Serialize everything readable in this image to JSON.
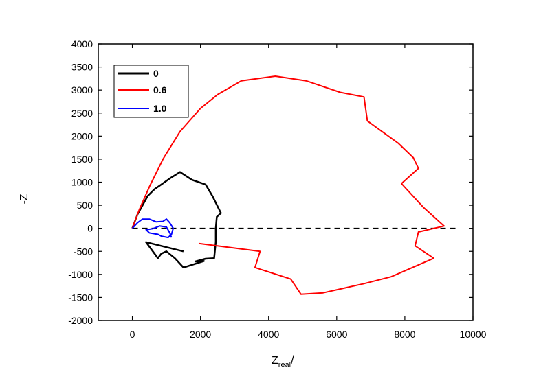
{
  "chart_data": {
    "type": "line",
    "title": "",
    "xlabel": "Z",
    "xlabel_subscript": "real",
    "xlabel_suffix": "/",
    "ylabel": "-Z",
    "xlim": [
      -1000,
      10000
    ],
    "ylim": [
      -2000,
      4000
    ],
    "x_ticks": [
      0,
      2000,
      4000,
      6000,
      8000,
      10000
    ],
    "y_ticks": [
      -2000,
      -1500,
      -1000,
      -500,
      0,
      500,
      1000,
      1500,
      2000,
      2500,
      3000,
      3500,
      4000
    ],
    "x_tick_labels": [
      "0",
      "2000",
      "4000",
      "6000",
      "8000",
      "10000"
    ],
    "y_tick_labels": [
      "-2000",
      "-1500",
      "-1000",
      "-500",
      "0",
      "500",
      "1000",
      "1500",
      "2000",
      "2500",
      "3000",
      "3500",
      "4000"
    ],
    "grid": false,
    "legend_position": "top-left",
    "reference_line": {
      "y": 0,
      "style": "dashed",
      "color": "#000000"
    },
    "series": [
      {
        "name": "0",
        "color": "#000000",
        "points": [
          [
            0,
            0
          ],
          [
            150,
            300
          ],
          [
            300,
            500
          ],
          [
            450,
            700
          ],
          [
            650,
            850
          ],
          [
            850,
            950
          ],
          [
            1100,
            1080
          ],
          [
            1400,
            1220
          ],
          [
            1750,
            1050
          ],
          [
            2150,
            950
          ],
          [
            2350,
            700
          ],
          [
            2600,
            330
          ],
          [
            2480,
            250
          ],
          [
            2450,
            0
          ],
          [
            2450,
            -300
          ],
          [
            2400,
            -650
          ],
          [
            2150,
            -660
          ],
          [
            1850,
            -720
          ],
          [
            2100,
            -710
          ],
          [
            1500,
            -850
          ],
          [
            1250,
            -650
          ],
          [
            1000,
            -500
          ],
          [
            850,
            -550
          ],
          [
            750,
            -650
          ],
          [
            400,
            -300
          ],
          [
            1500,
            -500
          ]
        ]
      },
      {
        "name": "0.6",
        "color": "#ff0000",
        "points": [
          [
            0,
            0
          ],
          [
            200,
            400
          ],
          [
            500,
            900
          ],
          [
            900,
            1500
          ],
          [
            1400,
            2100
          ],
          [
            2000,
            2600
          ],
          [
            2500,
            2900
          ],
          [
            3200,
            3200
          ],
          [
            4200,
            3300
          ],
          [
            5100,
            3200
          ],
          [
            6100,
            2950
          ],
          [
            6800,
            2850
          ],
          [
            6900,
            2330
          ],
          [
            7800,
            1850
          ],
          [
            8250,
            1530
          ],
          [
            8400,
            1300
          ],
          [
            7900,
            970
          ],
          [
            8550,
            450
          ],
          [
            9150,
            50
          ],
          [
            8400,
            -80
          ],
          [
            8300,
            -380
          ],
          [
            8850,
            -650
          ],
          [
            7600,
            -1050
          ],
          [
            6800,
            -1200
          ],
          [
            5600,
            -1400
          ],
          [
            4950,
            -1430
          ],
          [
            4650,
            -1100
          ],
          [
            3600,
            -850
          ],
          [
            3750,
            -500
          ],
          [
            1950,
            -330
          ]
        ]
      },
      {
        "name": "1.0",
        "color": "#0000ff",
        "points": [
          [
            0,
            0
          ],
          [
            150,
            120
          ],
          [
            300,
            200
          ],
          [
            500,
            200
          ],
          [
            700,
            140
          ],
          [
            900,
            150
          ],
          [
            1000,
            200
          ],
          [
            1100,
            120
          ],
          [
            1200,
            0
          ],
          [
            1150,
            -130
          ],
          [
            1050,
            -200
          ],
          [
            850,
            -170
          ],
          [
            750,
            -130
          ],
          [
            650,
            -120
          ],
          [
            500,
            -100
          ],
          [
            400,
            -30
          ],
          [
            600,
            -10
          ],
          [
            800,
            50
          ],
          [
            1000,
            30
          ],
          [
            1100,
            -100
          ],
          [
            1150,
            -200
          ]
        ]
      }
    ]
  }
}
